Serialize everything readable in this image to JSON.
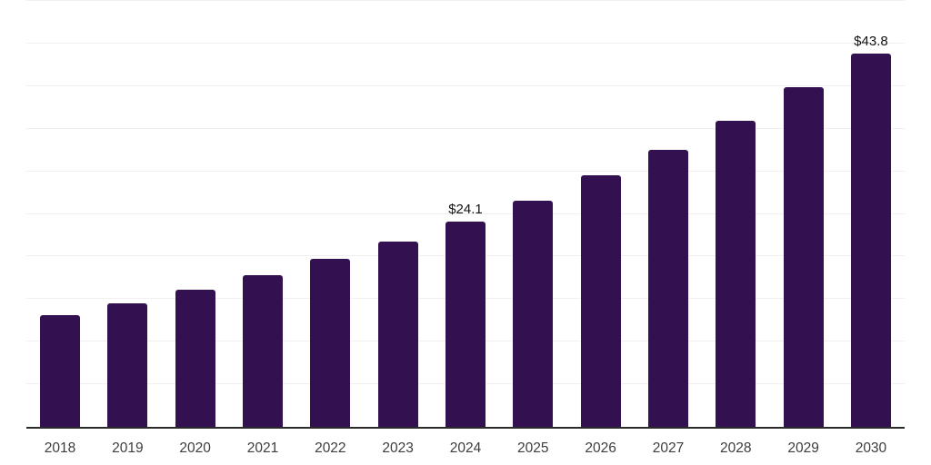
{
  "chart_data": {
    "type": "bar",
    "title": "",
    "xlabel": "",
    "ylabel": "",
    "categories": [
      "2018",
      "2019",
      "2020",
      "2021",
      "2022",
      "2023",
      "2024",
      "2025",
      "2026",
      "2027",
      "2028",
      "2029",
      "2030"
    ],
    "values": [
      13.1,
      14.5,
      16.1,
      17.8,
      19.7,
      21.8,
      24.1,
      26.6,
      29.5,
      32.5,
      35.9,
      39.9,
      43.8
    ],
    "data_labels": {
      "6": "$24.1",
      "12": "$43.8"
    },
    "ylim": [
      0,
      50
    ],
    "gridline_step": 5,
    "grid": "horizontal",
    "legend": false,
    "colors": {
      "bar": "#331150",
      "axis": "#2b2b2b",
      "gridline": "#f0f0f0",
      "tick_label": "#3d3d3d",
      "data_label": "#111111",
      "background": "#ffffff"
    }
  }
}
